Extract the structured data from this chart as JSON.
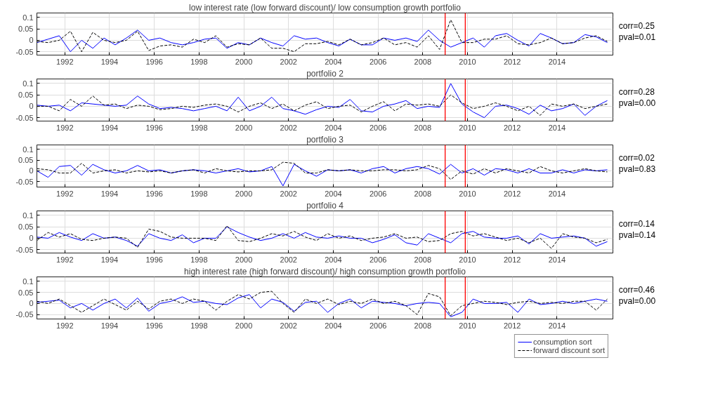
{
  "chart_data": [
    {
      "type": "line",
      "title": "low interest rate (low forward discount)/ low consumption growth portfolio",
      "x": [
        1990.75,
        1991.25,
        1991.75,
        1992.25,
        1992.75,
        1993.25,
        1993.75,
        1994.25,
        1994.75,
        1995.25,
        1995.75,
        1996.25,
        1996.75,
        1997.25,
        1997.75,
        1998.25,
        1998.75,
        1999.25,
        1999.75,
        2000.25,
        2000.75,
        2001.25,
        2001.75,
        2002.25,
        2002.75,
        2003.25,
        2003.75,
        2004.25,
        2004.75,
        2005.25,
        2005.75,
        2006.25,
        2006.75,
        2007.25,
        2007.75,
        2008.25,
        2008.75,
        2009.25,
        2009.75,
        2010.25,
        2010.75,
        2011.25,
        2011.75,
        2012.25,
        2012.75,
        2013.25,
        2013.75,
        2014.25,
        2014.75,
        2015.25,
        2015.75,
        2016.25
      ],
      "series": [
        {
          "color": "#0000ff",
          "line_style": "solid",
          "values": [
            -0.01,
            0.005,
            0.02,
            -0.05,
            0.0,
            -0.035,
            0.01,
            -0.02,
            0.01,
            0.045,
            0.0,
            0.01,
            -0.01,
            -0.02,
            -0.01,
            0.005,
            0.01,
            -0.035,
            -0.01,
            -0.02,
            0.01,
            -0.01,
            -0.025,
            0.02,
            0.005,
            0.01,
            -0.01,
            -0.025,
            0.005,
            -0.02,
            -0.02,
            0.01,
            0.0,
            0.01,
            -0.005,
            0.045,
            0.0,
            -0.03,
            -0.01,
            0.01,
            -0.03,
            0.02,
            0.03,
            0.0,
            -0.025,
            0.03,
            0.01,
            -0.015,
            -0.01,
            0.025,
            0.015,
            -0.01
          ]
        },
        {
          "color": "#000000",
          "line_style": "dashed",
          "values": [
            -0.005,
            -0.01,
            0.0,
            0.04,
            -0.05,
            0.035,
            0.0,
            -0.01,
            0.0,
            0.04,
            -0.045,
            -0.025,
            -0.02,
            -0.03,
            0.005,
            -0.01,
            0.02,
            -0.03,
            -0.015,
            -0.02,
            0.01,
            -0.035,
            -0.035,
            -0.05,
            -0.015,
            -0.015,
            -0.005,
            -0.02,
            0.005,
            -0.02,
            -0.01,
            0.01,
            -0.02,
            -0.01,
            -0.03,
            0.02,
            -0.04,
            0.09,
            -0.01,
            -0.01,
            0.005,
            0.005,
            0.02,
            -0.015,
            -0.02,
            -0.01,
            0.01,
            -0.015,
            -0.01,
            0.01,
            0.02,
            -0.005
          ]
        }
      ],
      "xlim": [
        1990.75,
        2016.5
      ],
      "ylim": [
        -0.065,
        0.12
      ],
      "xticks": [
        1992,
        1994,
        1996,
        1998,
        2000,
        2002,
        2004,
        2006,
        2008,
        2010,
        2012,
        2014
      ],
      "yticks": [
        -0.05,
        0,
        0.05,
        0.1
      ],
      "grid": true,
      "marker": "none",
      "ref_lines": [
        {
          "axis": "x",
          "value": 2009.0,
          "color": "#ff0000"
        },
        {
          "axis": "x",
          "value": 2009.9,
          "color": "#ff0000"
        }
      ],
      "annotations": [
        "corr=0.25",
        "pval=0.01"
      ]
    },
    {
      "type": "line",
      "title": "portfolio 2",
      "x": [
        1990.75,
        1991.25,
        1991.75,
        1992.25,
        1992.75,
        1993.25,
        1993.75,
        1994.25,
        1994.75,
        1995.25,
        1995.75,
        1996.25,
        1996.75,
        1997.25,
        1997.75,
        1998.25,
        1998.75,
        1999.25,
        1999.75,
        2000.25,
        2000.75,
        2001.25,
        2001.75,
        2002.25,
        2002.75,
        2003.25,
        2003.75,
        2004.25,
        2004.75,
        2005.25,
        2005.75,
        2006.25,
        2006.75,
        2007.25,
        2007.75,
        2008.25,
        2008.75,
        2009.25,
        2009.75,
        2010.25,
        2010.75,
        2011.25,
        2011.75,
        2012.25,
        2012.75,
        2013.25,
        2013.75,
        2014.25,
        2014.75,
        2015.25,
        2015.75,
        2016.25
      ],
      "series": [
        {
          "color": "#0000ff",
          "line_style": "solid",
          "values": [
            0.005,
            0.0,
            0.005,
            -0.02,
            0.015,
            0.01,
            0.005,
            0.0,
            0.005,
            0.045,
            0.01,
            -0.01,
            -0.005,
            -0.01,
            -0.02,
            -0.01,
            0.0,
            -0.02,
            0.04,
            -0.02,
            0.0,
            0.04,
            -0.01,
            -0.02,
            -0.035,
            -0.015,
            0.0,
            -0.005,
            0.03,
            -0.02,
            -0.025,
            0.0,
            0.01,
            0.025,
            -0.01,
            0.0,
            -0.005,
            0.1,
            0.01,
            -0.025,
            -0.05,
            0.0,
            0.005,
            -0.01,
            -0.035,
            0.005,
            -0.02,
            -0.01,
            0.01,
            -0.04,
            0.0,
            0.025
          ]
        },
        {
          "color": "#000000",
          "line_style": "dashed",
          "values": [
            0.0,
            0.0,
            -0.02,
            0.03,
            0.0,
            0.045,
            0.005,
            0.01,
            -0.01,
            0.005,
            0.0,
            -0.015,
            -0.01,
            0.0,
            -0.005,
            0.005,
            0.01,
            0.0,
            -0.025,
            0.0,
            0.015,
            -0.01,
            0.01,
            -0.02,
            0.005,
            0.02,
            -0.01,
            0.0,
            0.005,
            -0.025,
            0.0,
            0.02,
            -0.02,
            0.01,
            0.005,
            0.01,
            0.0,
            0.05,
            0.015,
            -0.01,
            0.0,
            0.015,
            0.0,
            -0.02,
            0.0,
            -0.04,
            0.01,
            0.0,
            0.01,
            -0.01,
            0.0,
            0.01
          ]
        }
      ],
      "xlim": [
        1990.75,
        2016.5
      ],
      "ylim": [
        -0.065,
        0.12
      ],
      "xticks": [
        1992,
        1994,
        1996,
        1998,
        2000,
        2002,
        2004,
        2006,
        2008,
        2010,
        2012,
        2014
      ],
      "yticks": [
        -0.05,
        0,
        0.05,
        0.1
      ],
      "grid": true,
      "marker": "none",
      "ref_lines": [
        {
          "axis": "x",
          "value": 2009.0,
          "color": "#ff0000"
        },
        {
          "axis": "x",
          "value": 2009.9,
          "color": "#ff0000"
        }
      ],
      "annotations": [
        "corr=0.28",
        "pval=0.00"
      ]
    },
    {
      "type": "line",
      "title": "portfolio 3",
      "x": [
        1990.75,
        1991.25,
        1991.75,
        1992.25,
        1992.75,
        1993.25,
        1993.75,
        1994.25,
        1994.75,
        1995.25,
        1995.75,
        1996.25,
        1996.75,
        1997.25,
        1997.75,
        1998.25,
        1998.75,
        1999.25,
        1999.75,
        2000.25,
        2000.75,
        2001.25,
        2001.75,
        2002.25,
        2002.75,
        2003.25,
        2003.75,
        2004.25,
        2004.75,
        2005.25,
        2005.75,
        2006.25,
        2006.75,
        2007.25,
        2007.75,
        2008.25,
        2008.75,
        2009.25,
        2009.75,
        2010.25,
        2010.75,
        2011.25,
        2011.75,
        2012.25,
        2012.75,
        2013.25,
        2013.75,
        2014.25,
        2014.75,
        2015.25,
        2015.75,
        2016.25
      ],
      "series": [
        {
          "color": "#0000ff",
          "line_style": "solid",
          "values": [
            0.0,
            -0.03,
            0.02,
            0.025,
            -0.02,
            0.03,
            0.005,
            -0.01,
            0.0,
            0.025,
            0.0,
            0.005,
            -0.01,
            0.0,
            0.005,
            0.0,
            -0.01,
            0.0,
            0.01,
            -0.005,
            0.0,
            0.02,
            -0.07,
            0.03,
            0.0,
            -0.025,
            0.005,
            0.0,
            0.005,
            -0.01,
            0.01,
            0.02,
            -0.01,
            0.01,
            0.02,
            0.01,
            -0.015,
            0.03,
            -0.01,
            0.01,
            -0.02,
            0.01,
            0.005,
            -0.01,
            0.01,
            -0.01,
            -0.01,
            0.005,
            -0.01,
            0.005,
            0.0,
            0.005
          ]
        },
        {
          "color": "#000000",
          "line_style": "dashed",
          "values": [
            0.01,
            0.005,
            -0.01,
            -0.01,
            0.035,
            -0.01,
            0.0,
            0.005,
            -0.01,
            0.0,
            -0.005,
            0.0,
            -0.01,
            0.0,
            0.005,
            -0.01,
            0.01,
            0.0,
            -0.005,
            0.0,
            0.0,
            0.005,
            0.04,
            0.035,
            -0.01,
            -0.01,
            0.005,
            0.0,
            0.005,
            0.0,
            0.0,
            0.005,
            0.005,
            0.0,
            0.005,
            0.025,
            0.01,
            -0.04,
            0.0,
            -0.015,
            0.01,
            -0.01,
            0.01,
            0.0,
            -0.01,
            0.02,
            0.0,
            -0.01,
            0.0,
            0.01,
            0.0,
            -0.005
          ]
        }
      ],
      "xlim": [
        1990.75,
        2016.5
      ],
      "ylim": [
        -0.075,
        0.12
      ],
      "xticks": [
        1992,
        1994,
        1996,
        1998,
        2000,
        2002,
        2004,
        2006,
        2008,
        2010,
        2012,
        2014
      ],
      "yticks": [
        -0.05,
        0,
        0.05,
        0.1
      ],
      "grid": true,
      "marker": "none",
      "ref_lines": [
        {
          "axis": "x",
          "value": 2009.0,
          "color": "#ff0000"
        },
        {
          "axis": "x",
          "value": 2009.9,
          "color": "#ff0000"
        }
      ],
      "annotations": [
        "corr=0.02",
        "pval=0.83"
      ]
    },
    {
      "type": "line",
      "title": "portfolio 4",
      "x": [
        1990.75,
        1991.25,
        1991.75,
        1992.25,
        1992.75,
        1993.25,
        1993.75,
        1994.25,
        1994.75,
        1995.25,
        1995.75,
        1996.25,
        1996.75,
        1997.25,
        1997.75,
        1998.25,
        1998.75,
        1999.25,
        1999.75,
        2000.25,
        2000.75,
        2001.25,
        2001.75,
        2002.25,
        2002.75,
        2003.25,
        2003.75,
        2004.25,
        2004.75,
        2005.25,
        2005.75,
        2006.25,
        2006.75,
        2007.25,
        2007.75,
        2008.25,
        2008.75,
        2009.25,
        2009.75,
        2010.25,
        2010.75,
        2011.25,
        2011.75,
        2012.25,
        2012.75,
        2013.25,
        2013.75,
        2014.25,
        2014.75,
        2015.25,
        2015.75,
        2016.25
      ],
      "series": [
        {
          "color": "#0000ff",
          "line_style": "solid",
          "values": [
            0.005,
            0.0,
            0.025,
            0.005,
            -0.01,
            0.02,
            0.0,
            0.005,
            -0.01,
            -0.035,
            0.02,
            0.0,
            -0.01,
            0.015,
            -0.02,
            0.0,
            0.0,
            0.05,
            0.025,
            0.005,
            -0.01,
            0.0,
            0.02,
            0.0,
            0.025,
            0.005,
            0.0,
            0.01,
            0.0,
            0.0,
            -0.02,
            -0.005,
            0.015,
            -0.02,
            -0.03,
            0.02,
            0.0,
            -0.02,
            0.02,
            0.03,
            0.005,
            0.0,
            0.0,
            0.01,
            -0.025,
            0.02,
            0.0,
            0.005,
            0.01,
            0.0,
            -0.035,
            -0.015
          ]
        },
        {
          "color": "#000000",
          "line_style": "dashed",
          "values": [
            -0.01,
            0.025,
            0.005,
            0.02,
            -0.005,
            -0.01,
            0.0,
            0.005,
            0.0,
            -0.04,
            0.04,
            0.03,
            0.005,
            0.0,
            0.0,
            0.0,
            -0.01,
            0.055,
            -0.01,
            -0.015,
            0.0,
            0.02,
            0.01,
            0.03,
            0.005,
            -0.01,
            0.02,
            0.0,
            0.01,
            -0.01,
            0.0,
            0.005,
            0.02,
            0.0,
            0.005,
            -0.015,
            -0.01,
            0.02,
            0.03,
            0.01,
            0.02,
            0.005,
            -0.01,
            0.0,
            -0.02,
            0.0,
            -0.045,
            0.02,
            0.005,
            0.0,
            -0.02,
            -0.005
          ]
        }
      ],
      "xlim": [
        1990.75,
        2016.5
      ],
      "ylim": [
        -0.065,
        0.12
      ],
      "xticks": [
        1992,
        1994,
        1996,
        1998,
        2000,
        2002,
        2004,
        2006,
        2008,
        2010,
        2012,
        2014
      ],
      "yticks": [
        -0.05,
        0,
        0.05,
        0.1
      ],
      "grid": true,
      "marker": "none",
      "ref_lines": [
        {
          "axis": "x",
          "value": 2009.0,
          "color": "#ff0000"
        },
        {
          "axis": "x",
          "value": 2009.9,
          "color": "#ff0000"
        }
      ],
      "annotations": [
        "corr=0.14",
        "pval=0.14"
      ]
    },
    {
      "type": "line",
      "title": "high interest rate (high forward discount)/ high consumption growth portfolio",
      "x": [
        1990.75,
        1991.25,
        1991.75,
        1992.25,
        1992.75,
        1993.25,
        1993.75,
        1994.25,
        1994.75,
        1995.25,
        1995.75,
        1996.25,
        1996.75,
        1997.25,
        1997.75,
        1998.25,
        1998.75,
        1999.25,
        1999.75,
        2000.25,
        2000.75,
        2001.25,
        2001.75,
        2002.25,
        2002.75,
        2003.25,
        2003.75,
        2004.25,
        2004.75,
        2005.25,
        2005.75,
        2006.25,
        2006.75,
        2007.25,
        2007.75,
        2008.25,
        2008.75,
        2009.25,
        2009.75,
        2010.25,
        2010.75,
        2011.25,
        2011.75,
        2012.25,
        2012.75,
        2013.25,
        2013.75,
        2014.25,
        2014.75,
        2015.25,
        2015.75,
        2016.25
      ],
      "series": [
        {
          "name": "consumption sort",
          "color": "#0000ff",
          "line_style": "solid",
          "values": [
            0.005,
            0.01,
            0.015,
            -0.02,
            0.0,
            -0.03,
            0.0,
            0.02,
            -0.02,
            0.025,
            -0.035,
            0.0,
            0.01,
            0.03,
            0.005,
            0.01,
            0.0,
            -0.005,
            0.025,
            0.04,
            -0.02,
            0.02,
            0.005,
            -0.035,
            0.005,
            0.01,
            -0.04,
            0.0,
            0.02,
            -0.02,
            0.01,
            0.005,
            0.0,
            -0.01,
            0.0,
            0.005,
            0.0,
            -0.06,
            -0.04,
            0.02,
            0.0,
            0.0,
            0.005,
            -0.04,
            0.02,
            -0.005,
            0.0,
            0.01,
            0.0,
            0.01,
            0.02,
            0.01
          ]
        },
        {
          "name": "forward discount sort",
          "color": "#000000",
          "line_style": "dashed",
          "values": [
            0.01,
            0.0,
            0.02,
            -0.01,
            -0.04,
            -0.01,
            0.02,
            -0.005,
            -0.03,
            0.01,
            -0.025,
            0.01,
            0.02,
            0.0,
            0.02,
            0.01,
            -0.03,
            0.01,
            0.04,
            0.02,
            0.05,
            0.055,
            0.0,
            -0.04,
            0.02,
            0.0,
            0.02,
            -0.005,
            0.01,
            0.0,
            0.02,
            0.0,
            0.01,
            -0.01,
            -0.05,
            0.045,
            0.03,
            -0.055,
            -0.01,
            0.0,
            0.01,
            0.005,
            -0.005,
            0.005,
            0.01,
            0.0,
            0.005,
            0.0,
            0.01,
            0.01,
            -0.03,
            0.02
          ]
        }
      ],
      "xlim": [
        1990.75,
        2016.5
      ],
      "ylim": [
        -0.07,
        0.12
      ],
      "xticks": [
        1992,
        1994,
        1996,
        1998,
        2000,
        2002,
        2004,
        2006,
        2008,
        2010,
        2012,
        2014
      ],
      "yticks": [
        -0.05,
        0,
        0.05,
        0.1
      ],
      "grid": true,
      "marker": "none",
      "legend": "bottom right",
      "ref_lines": [
        {
          "axis": "x",
          "value": 2009.0,
          "color": "#ff0000"
        },
        {
          "axis": "x",
          "value": 2009.9,
          "color": "#ff0000"
        }
      ],
      "annotations": [
        "corr=0.46",
        "pval=0.00"
      ]
    }
  ]
}
